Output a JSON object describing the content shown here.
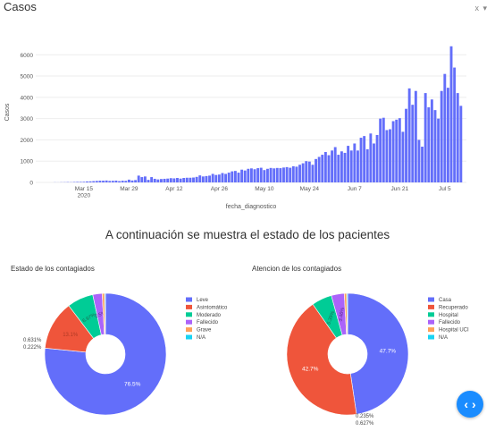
{
  "header": {
    "title": "Casos",
    "controls": "x ▾"
  },
  "section_title": "A continuación se muestra el estado de los pacientes",
  "colors": {
    "bar": "#636efa",
    "grid": "#eeeeee",
    "code_button": "#1a8cff"
  },
  "chart_data": [
    {
      "type": "bar",
      "xlabel": "fecha_diagnostico",
      "ylabel": "Casos",
      "ylim": [
        0,
        6600
      ],
      "yticks": [
        0,
        1000,
        2000,
        3000,
        4000,
        5000,
        6000
      ],
      "grid": true,
      "xtick_labels": [
        "Mar 15\n2020",
        "Mar 29",
        "Apr 12",
        "Apr 26",
        "May 10",
        "May 24",
        "Jun 7",
        "Jun 21",
        "Jul 5"
      ],
      "x_start": "2020-03-06",
      "values": [
        5,
        3,
        8,
        10,
        15,
        10,
        20,
        25,
        25,
        30,
        45,
        50,
        60,
        70,
        80,
        80,
        90,
        70,
        75,
        85,
        60,
        80,
        75,
        130,
        90,
        110,
        320,
        250,
        280,
        120,
        250,
        170,
        140,
        160,
        170,
        180,
        200,
        190,
        210,
        180,
        210,
        220,
        220,
        230,
        260,
        330,
        280,
        300,
        320,
        400,
        350,
        370,
        440,
        400,
        460,
        520,
        540,
        460,
        600,
        560,
        640,
        660,
        620,
        670,
        690,
        580,
        640,
        680,
        660,
        680,
        670,
        700,
        720,
        690,
        760,
        740,
        830,
        900,
        1000,
        980,
        830,
        1100,
        1200,
        1300,
        1430,
        1280,
        1500,
        1660,
        1300,
        1460,
        1390,
        1720,
        1500,
        1830,
        1500,
        2100,
        2180,
        1560,
        2300,
        1830,
        2230,
        3000,
        3040,
        2460,
        2500,
        2880,
        2950,
        3020,
        2380,
        3460,
        4420,
        3650,
        4300,
        2000,
        1680,
        4200,
        3530,
        3900,
        3400,
        3000,
        4300,
        5100,
        4450,
        6400,
        5400,
        4200,
        3600
      ]
    },
    {
      "type": "pie",
      "title": "Estado de los contagiados",
      "hole": true,
      "labels": [
        "Leve",
        "Asintomático",
        "Moderado",
        "Fallecido",
        "Grave",
        "N/A"
      ],
      "values": [
        76.5,
        13.1,
        6.97,
        2.5,
        0.631,
        0.222
      ],
      "text_labels": [
        "76.5%",
        "13.1%",
        "6.97%",
        "2.5%",
        "0.631%",
        "0.222%"
      ],
      "colors": [
        "#636efa",
        "#ef553b",
        "#00cc96",
        "#ab63fa",
        "#ffa15a",
        "#19d3f3"
      ]
    },
    {
      "type": "pie",
      "title": "Atencion de los contagiados",
      "hole": true,
      "labels": [
        "Casa",
        "Recuperado",
        "Hospital",
        "Fallecido",
        "Hospital UCI",
        "N/A"
      ],
      "values": [
        47.7,
        42.7,
        5.39,
        3.46,
        0.627,
        0.235
      ],
      "text_labels": [
        "47.7%",
        "42.7%",
        "5.39%",
        "3.46%",
        "0.627%",
        "0.235%"
      ],
      "colors": [
        "#636efa",
        "#ef553b",
        "#00cc96",
        "#ab63fa",
        "#ffa15a",
        "#19d3f3"
      ]
    }
  ],
  "code_button": {
    "icon": "code-brackets-icon",
    "glyph": "‹ ›"
  }
}
